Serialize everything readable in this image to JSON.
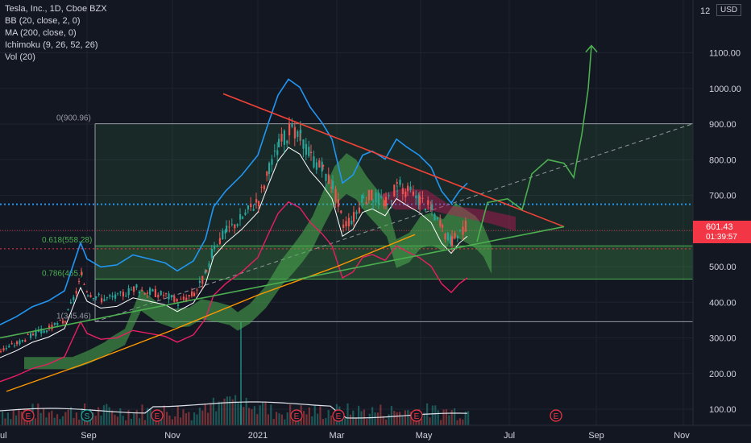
{
  "legend": {
    "title": "Tesla, Inc., 1D, Cboe BZX",
    "bb": "BB (20, close, 2, 0)",
    "ma": "MA (200, close, 0)",
    "ichimoku": "Ichimoku (9, 26, 52, 26)",
    "vol": "Vol (20)"
  },
  "currency": "USD",
  "last_price": "601.43",
  "countdown": "01:39:57",
  "colors": {
    "background": "#131722",
    "bb_upper": "#2196f3",
    "bb_basis": "#ffffff",
    "bb_lower": "#e91e63",
    "ma200": "#ff9800",
    "cloud_bull": "#4caf50",
    "cloud_bear": "#c2185b",
    "triangle_top": "#f44336",
    "triangle_bottom": "#4caf50",
    "projection": "#4caf50",
    "up_candle": "#26a69a",
    "down_candle": "#ef5350"
  },
  "chart_data": {
    "type": "line",
    "title": "Tesla, Inc., 1D, Cboe BZX",
    "y_axis": {
      "ticks": [
        100,
        200,
        300,
        400,
        500,
        600,
        700,
        800,
        900,
        1000,
        1100
      ],
      "tick_labels": [
        "100.00",
        "200.00",
        "300.00",
        "400.00",
        "500.00",
        "600.00",
        "700.00",
        "800.00",
        "900.00",
        "1000.00",
        "1100.00"
      ],
      "top_partial_label": "12",
      "ylim": [
        65,
        1225
      ]
    },
    "x_axis": {
      "ticks": [
        "Sep",
        "Nov",
        "2021",
        "Mar",
        "May",
        "Jul",
        "Sep",
        "Nov"
      ],
      "first_partial_label": "ul"
    },
    "fib_levels": [
      {
        "label": "0(900.96)",
        "value": 900.96
      },
      {
        "label": "0.618(558.28)",
        "value": 558.28
      },
      {
        "label": "0.786(465.)",
        "value": 465
      },
      {
        "label": "1(345.46)",
        "value": 345.46
      }
    ],
    "horizontal_levels": {
      "dotted_blue": 675,
      "dotted_red": 550,
      "last_price": 601.43
    },
    "event_markers": [
      "E",
      "S",
      "E",
      "E",
      "E",
      "E",
      "E"
    ],
    "series": [
      {
        "name": "Close",
        "color": "#b2b5be",
        "points": [
          [
            "Jul",
            265
          ],
          [
            "Aug",
            320
          ],
          [
            "Sep",
            420
          ],
          [
            "Oct",
            440
          ],
          [
            "Nov",
            405
          ],
          [
            "Dec",
            610
          ],
          [
            "2021",
            730
          ],
          [
            "Jan-late",
            850
          ],
          [
            "Feb",
            810
          ],
          [
            "Mar",
            660
          ],
          [
            "Apr",
            700
          ],
          [
            "Apr-late",
            700
          ],
          [
            "May",
            590
          ],
          [
            "May-late",
            601
          ]
        ]
      },
      {
        "name": "MA 200",
        "color": "#ff9800",
        "points": [
          [
            "Jul",
            150
          ],
          [
            "Sep",
            230
          ],
          [
            "Nov",
            320
          ],
          [
            "2021",
            420
          ],
          [
            "Mar",
            500
          ],
          [
            "May",
            590
          ]
        ]
      }
    ]
  }
}
